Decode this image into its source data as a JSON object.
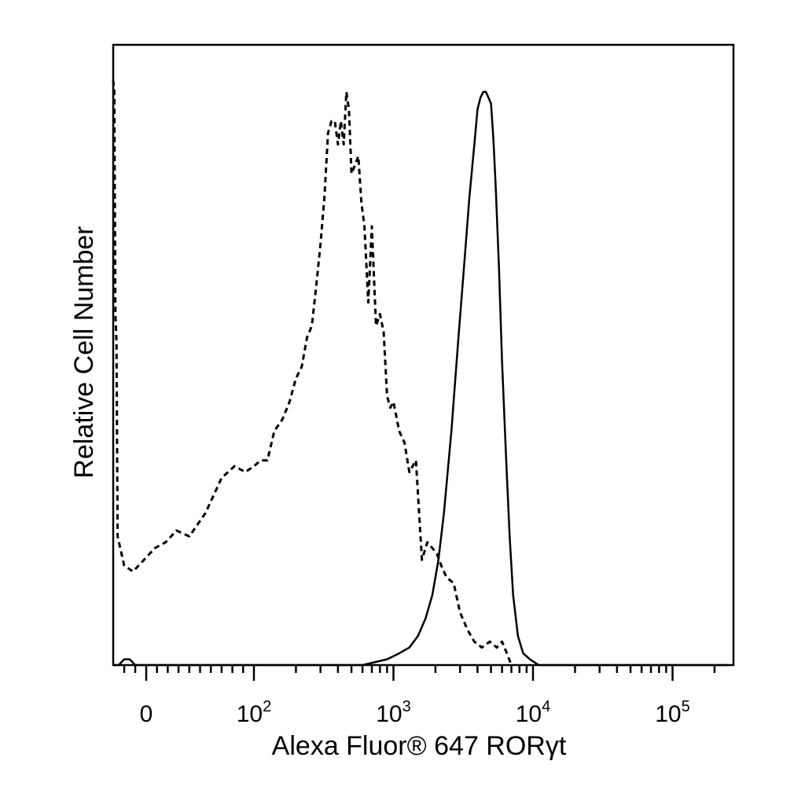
{
  "chart_data": {
    "type": "line",
    "title": "",
    "xlabel": "Alexa Fluor® 647  RORγt",
    "ylabel": "Relative Cell Number",
    "x_scale": "biexponential",
    "xlim": [
      -30,
      250000
    ],
    "ylim": [
      0,
      100
    ],
    "grid": false,
    "legend": "none",
    "x_ticks": [
      {
        "base": "0",
        "exp": ""
      },
      {
        "base": "10",
        "exp": "2"
      },
      {
        "base": "10",
        "exp": "3"
      },
      {
        "base": "10",
        "exp": "4"
      },
      {
        "base": "10",
        "exp": "5"
      }
    ],
    "series": [
      {
        "style": "dashed",
        "x": [
          -30,
          -29,
          -28,
          -27,
          -26,
          -20,
          -12,
          -2,
          8,
          18,
          28,
          40,
          55,
          70,
          82,
          92,
          100,
          112,
          125,
          140,
          160,
          180,
          200,
          220,
          240,
          260,
          280,
          300,
          320,
          340,
          360,
          380,
          400,
          420,
          440,
          460,
          480,
          500,
          520,
          560,
          590,
          620,
          660,
          700,
          750,
          800,
          850,
          900,
          950,
          1000,
          1100,
          1200,
          1300,
          1450,
          1600,
          1750,
          1900,
          2050,
          2200,
          2400,
          2700,
          3000,
          3400,
          3800,
          4300,
          4900,
          5500,
          6000,
          6500,
          7000
        ],
        "y": [
          100,
          98,
          60,
          55,
          22,
          17,
          16,
          18,
          20,
          21,
          23,
          22,
          26,
          32,
          34,
          33,
          34,
          35,
          35,
          40,
          42,
          45,
          49,
          51,
          56,
          58,
          65,
          72,
          80,
          91,
          93,
          93,
          89,
          93,
          89,
          98,
          95,
          84,
          85,
          87,
          79,
          75,
          62,
          75,
          58,
          60,
          57,
          46,
          44,
          45,
          40,
          38,
          33,
          35,
          18,
          21,
          20,
          19,
          17,
          15,
          14,
          9,
          6,
          4,
          3,
          4,
          3,
          4,
          2,
          0
        ]
      },
      {
        "style": "solid",
        "x": [
          -30,
          -25,
          -20,
          -15,
          -10,
          0,
          300,
          600,
          900,
          1100,
          1300,
          1500,
          1700,
          1900,
          2100,
          2300,
          2600,
          2900,
          3200,
          3500,
          3800,
          4000,
          4200,
          4400,
          4600,
          4800,
          5000,
          5200,
          5400,
          5700,
          6000,
          6400,
          6800,
          7200,
          7800,
          8500,
          9500,
          11000,
          15000,
          30000,
          60000,
          250000
        ],
        "y": [
          0,
          0,
          1,
          1,
          0,
          0,
          0,
          0,
          1,
          2,
          3,
          5,
          8,
          12,
          18,
          26,
          40,
          55,
          68,
          80,
          89,
          95,
          97,
          98,
          98,
          97,
          96,
          90,
          82,
          68,
          52,
          36,
          22,
          12,
          5,
          2,
          1,
          0,
          0,
          0,
          0,
          0
        ]
      }
    ]
  }
}
